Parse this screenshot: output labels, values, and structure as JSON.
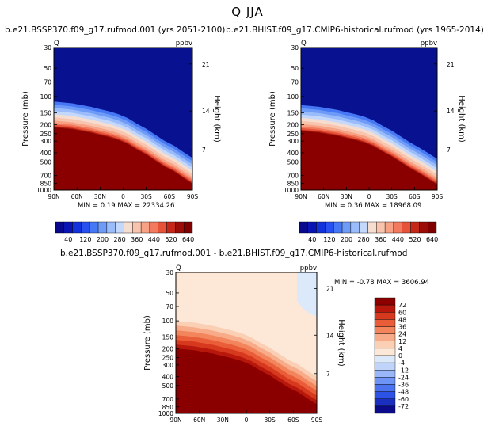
{
  "page_title": "Q JJA",
  "colors": {
    "positive_ramp": [
      "#08088c",
      "#0a14b4",
      "#1432dc",
      "#2850f0",
      "#4678f5",
      "#6e9bf8",
      "#9bbcfa",
      "#c4d8fc",
      "#f5ddd0",
      "#f8c4ad",
      "#f7a284",
      "#f27b5f",
      "#e55339",
      "#c52818",
      "#9c0d08",
      "#800000"
    ],
    "diff_ramp": [
      "#0a0a8a",
      "#1a2fc0",
      "#2d52e6",
      "#4b73f0",
      "#6e95f5",
      "#98b6f8",
      "#c0d4fa",
      "#dbe9fa",
      "#fde8d8",
      "#fbcfb4",
      "#f8ab88",
      "#f3855d",
      "#e95d39",
      "#d7391e",
      "#b8180c",
      "#8c0000"
    ],
    "upper_field": "#081290",
    "lower_field": "#8a0000",
    "diff_upper": "#fde8d8",
    "diff_light": "#dbe9fa"
  },
  "chart_data": [
    {
      "type": "heatmap",
      "panel": "top-left",
      "title": "b.e21.BSSP370.f09_g17.rufmod.001 (yrs 2051-2100)",
      "variable": "Q",
      "units": "ppbv",
      "xlabel": "",
      "ylabel": "Pressure (mb)",
      "y2label": "Height (km)",
      "x_ticks": [
        "90N",
        "60N",
        "30N",
        "0",
        "30S",
        "60S",
        "90S"
      ],
      "y_ticks": [
        "30",
        "50",
        "70",
        "100",
        "150",
        "200",
        "250",
        "300",
        "400",
        "500",
        "700",
        "850",
        "1000"
      ],
      "y2_ticks": [
        "21",
        "14",
        "7"
      ],
      "stats": {
        "min_label": "MIN =",
        "min": "0.19",
        "max_label": "MAX =",
        "max": "22334.26"
      },
      "boundary_pressure_mb": [
        220,
        225,
        230,
        240,
        250,
        265,
        280,
        300,
        330,
        380,
        430,
        500,
        580,
        650,
        760,
        880
      ],
      "colorbar": [
        "40",
        "120",
        "200",
        "280",
        "360",
        "440",
        "520",
        "640"
      ]
    },
    {
      "type": "heatmap",
      "panel": "top-right",
      "title": "b.e21.BHIST.f09_g17.CMIP6-historical.rufmod (yrs 1965-2014)",
      "variable": "Q",
      "units": "ppbv",
      "xlabel": "",
      "ylabel": "Pressure (mb)",
      "y2label": "Height (km)",
      "x_ticks": [
        "90N",
        "60N",
        "30N",
        "0",
        "30S",
        "60S",
        "90S"
      ],
      "y_ticks": [
        "30",
        "50",
        "70",
        "100",
        "150",
        "200",
        "250",
        "300",
        "400",
        "500",
        "700",
        "850",
        "1000"
      ],
      "y2_ticks": [
        "21",
        "14",
        "7"
      ],
      "stats": {
        "min_label": "MIN =",
        "min": "0.36",
        "max_label": "MAX =",
        "max": "18968.09"
      },
      "boundary_pressure_mb": [
        240,
        245,
        250,
        260,
        270,
        285,
        300,
        320,
        350,
        400,
        450,
        520,
        600,
        680,
        780,
        900
      ],
      "colorbar": [
        "40",
        "120",
        "200",
        "280",
        "360",
        "440",
        "520",
        "640"
      ]
    },
    {
      "type": "heatmap",
      "panel": "bottom",
      "title": "b.e21.BSSP370.f09_g17.rufmod.001 - b.e21.BHIST.f09_g17.CMIP6-historical.rufmod",
      "variable": "Q",
      "units": "ppbv",
      "xlabel": "",
      "ylabel": "Pressure (mb)",
      "y2label": "Height (km)",
      "x_ticks": [
        "90N",
        "60N",
        "30N",
        "0",
        "30S",
        "60S",
        "90S"
      ],
      "y_ticks": [
        "30",
        "50",
        "70",
        "100",
        "150",
        "200",
        "250",
        "300",
        "400",
        "500",
        "700",
        "850",
        "1000"
      ],
      "y2_ticks": [
        "21",
        "14",
        "7"
      ],
      "stats": {
        "min_label": "MIN =",
        "min": "-0.78",
        "max_label": "MAX =",
        "max": "3606.94"
      },
      "boundary_pressure_mb": [
        220,
        225,
        230,
        240,
        250,
        265,
        280,
        300,
        330,
        380,
        430,
        500,
        580,
        650,
        760,
        880
      ],
      "colorbar": [
        "72",
        "60",
        "48",
        "36",
        "24",
        "12",
        "4",
        "0",
        "-4",
        "-12",
        "-24",
        "-36",
        "-48",
        "-60",
        "-72"
      ]
    }
  ]
}
